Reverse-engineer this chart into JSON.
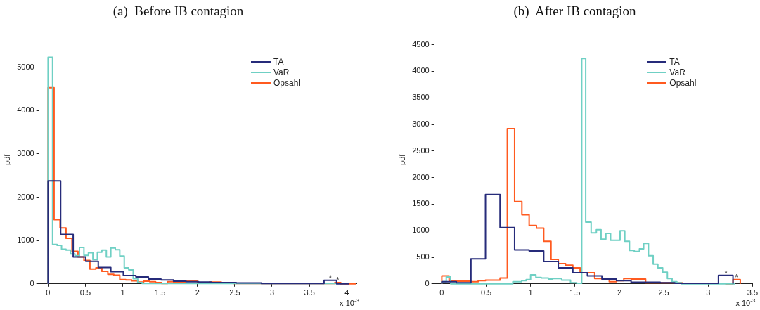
{
  "chart_data": [
    {
      "type": "step",
      "title": "(a)  Before IB contagion",
      "ylabel": "pdf",
      "xlabel": "x 10$^{-3}$",
      "xlim": [
        -0.12,
        4.13
      ],
      "xticks": [
        0,
        0.5,
        1,
        1.5,
        2,
        2.5,
        3,
        3.5,
        4
      ],
      "ylim": [
        0,
        5730
      ],
      "yticks": [
        0,
        1000,
        2000,
        3000,
        4000,
        5000
      ],
      "grid": false,
      "legend": "top right",
      "marker": "none",
      "annotations": [
        {
          "text": "*",
          "x": 3.78,
          "y": 80
        },
        {
          "text": "*",
          "x": 3.88,
          "y": 30
        }
      ],
      "series": [
        {
          "name": "TA",
          "color": "#262b7a",
          "x": [
            0,
            0,
            0.168,
            0.336,
            0.504,
            0.672,
            0.84,
            1.008,
            1.176,
            1.344,
            1.512,
            1.68,
            1.848,
            2.016,
            2.184,
            2.352,
            2.52,
            2.688,
            2.856,
            3.024,
            3.192,
            3.36,
            3.528,
            3.696,
            3.864,
            4.032
          ],
          "values": [
            0,
            2380,
            1140,
            620,
            520,
            380,
            280,
            190,
            160,
            110,
            90,
            60,
            50,
            40,
            30,
            30,
            20,
            20,
            10,
            10,
            10,
            10,
            10,
            80,
            0,
            0
          ]
        },
        {
          "name": "VaR",
          "color": "#6fd0c4",
          "x": [
            0,
            0,
            0.06,
            0.12,
            0.18,
            0.24,
            0.3,
            0.36,
            0.42,
            0.48,
            0.54,
            0.6,
            0.66,
            0.72,
            0.78,
            0.84,
            0.9,
            0.96,
            1.02,
            1.08,
            1.14,
            1.2,
            1.26,
            3.96
          ],
          "values": [
            0,
            5230,
            910,
            890,
            800,
            780,
            690,
            650,
            840,
            660,
            720,
            560,
            730,
            780,
            620,
            830,
            790,
            640,
            370,
            320,
            120,
            30,
            10,
            0
          ]
        },
        {
          "name": "Opsahl",
          "color": "#ff5a1f",
          "x": [
            0,
            0,
            0.08,
            0.16,
            0.24,
            0.32,
            0.4,
            0.48,
            0.56,
            0.64,
            0.72,
            0.8,
            0.88,
            0.96,
            1.04,
            1.12,
            1.2,
            1.28,
            1.36,
            1.44,
            1.52,
            1.6,
            1.68,
            1.84,
            2.0,
            2.16,
            2.32,
            2.48,
            3.84,
            3.92,
            4.13
          ],
          "values": [
            0,
            4530,
            1480,
            1290,
            1050,
            750,
            620,
            540,
            340,
            370,
            290,
            220,
            200,
            100,
            90,
            70,
            40,
            60,
            50,
            30,
            10,
            50,
            40,
            60,
            20,
            40,
            30,
            10,
            30,
            0,
            0
          ]
        }
      ]
    },
    {
      "type": "step",
      "title": "(b)  After IB contagion",
      "ylabel": "pdf",
      "xlabel": "x 10$^{-3}$",
      "xlim": [
        -0.085,
        3.5
      ],
      "xticks": [
        0,
        0.5,
        1,
        1.5,
        2,
        2.5,
        3,
        3.5
      ],
      "ylim": [
        0,
        4670
      ],
      "yticks": [
        0,
        500,
        1000,
        1500,
        2000,
        2500,
        3000,
        3500,
        4000,
        4500
      ],
      "grid": false,
      "legend": "top right",
      "marker": "none",
      "annotations": [
        {
          "text": "*",
          "x": 3.2,
          "y": 160
        },
        {
          "text": "*",
          "x": 3.32,
          "y": 80
        }
      ],
      "series": [
        {
          "name": "TA",
          "color": "#262b7a",
          "x": [
            0,
            0,
            0.164,
            0.328,
            0.492,
            0.656,
            0.82,
            0.984,
            1.148,
            1.312,
            1.476,
            1.64,
            1.804,
            1.968,
            2.132,
            2.296,
            2.46,
            2.624,
            2.788,
            2.952,
            3.116,
            3.28
          ],
          "values": [
            0,
            40,
            20,
            470,
            1680,
            1060,
            640,
            620,
            420,
            300,
            210,
            150,
            90,
            60,
            30,
            30,
            20,
            10,
            10,
            10,
            160,
            0
          ]
        },
        {
          "name": "VaR",
          "color": "#6fd0c4",
          "x": [
            0,
            0,
            0.05,
            0.1,
            0.8,
            0.9,
            0.95,
            1.0,
            1.06,
            1.12,
            1.2,
            1.25,
            1.35,
            1.45,
            1.52,
            1.576,
            1.621,
            1.682,
            1.741,
            1.794,
            1.848,
            1.901,
            2.008,
            2.061,
            2.114,
            2.168,
            2.226,
            2.274,
            2.328,
            2.381,
            2.434,
            2.488,
            2.541,
            2.594,
            2.648,
            2.701,
            3.3
          ],
          "values": [
            0,
            40,
            130,
            0,
            40,
            60,
            80,
            170,
            120,
            110,
            90,
            100,
            70,
            20,
            10,
            4240,
            1160,
            960,
            1020,
            840,
            950,
            820,
            1000,
            800,
            630,
            610,
            660,
            760,
            530,
            370,
            300,
            220,
            100,
            40,
            20,
            0,
            0
          ]
        },
        {
          "name": "Opsahl",
          "color": "#ff5a1f",
          "x": [
            0,
            0,
            0.082,
            0.164,
            0.328,
            0.41,
            0.492,
            0.574,
            0.656,
            0.738,
            0.82,
            0.902,
            0.984,
            1.066,
            1.148,
            1.23,
            1.312,
            1.394,
            1.476,
            1.558,
            1.722,
            1.804,
            1.886,
            1.968,
            2.05,
            2.132,
            2.296,
            2.706,
            3.198,
            3.28,
            3.362
          ],
          "values": [
            0,
            150,
            60,
            50,
            40,
            60,
            70,
            70,
            110,
            2920,
            1550,
            1300,
            1100,
            1050,
            800,
            460,
            380,
            350,
            300,
            210,
            100,
            90,
            40,
            60,
            100,
            90,
            20,
            10,
            0,
            80,
            0
          ]
        }
      ]
    }
  ]
}
